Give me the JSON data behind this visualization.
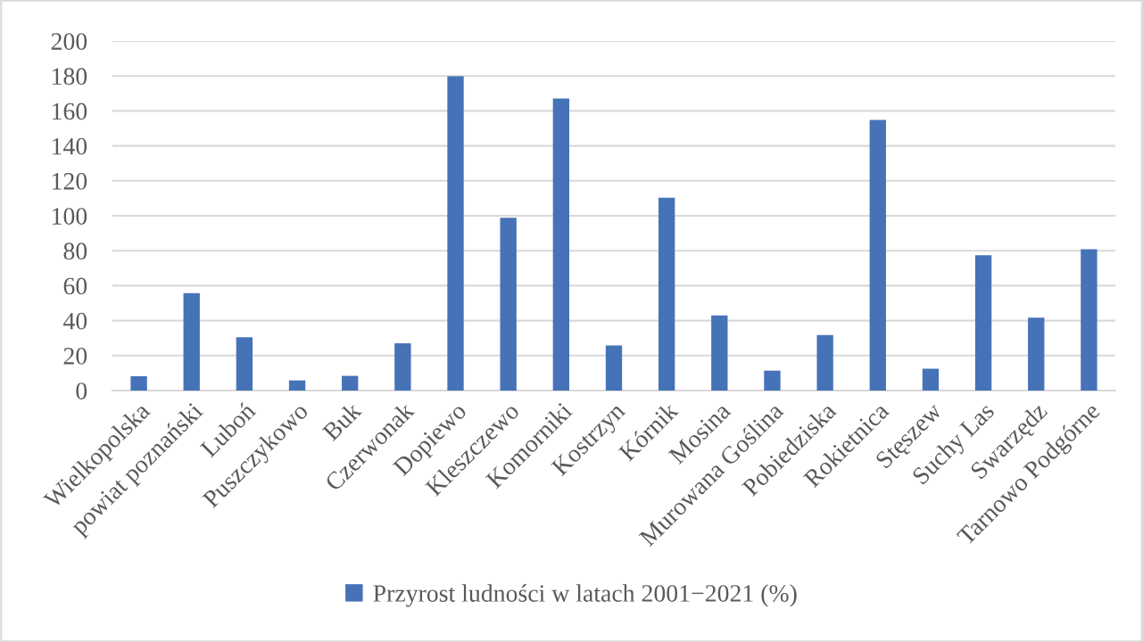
{
  "chart_data": {
    "type": "bar",
    "categories": [
      "Wielkopolska",
      "powiat poznański",
      "Luboń",
      "Puszczykowo",
      "Buk",
      "Czerwonak",
      "Dopiewo",
      "Kleszczewo",
      "Komorniki",
      "Kostrzyn",
      "Kórnik",
      "Mosina",
      "Murowana Goślina",
      "Pobiedziska",
      "Rokietnica",
      "Stęszew",
      "Suchy Las",
      "Swarzędz",
      "Tarnowo Podgórne"
    ],
    "series": [
      {
        "name": "Przyrost ludności w latach 2001−2021 (%)",
        "color": "#4672b8",
        "values": [
          8.2,
          55.7,
          30.5,
          5.8,
          8.4,
          27.1,
          179.8,
          98.9,
          167.1,
          25.8,
          110.3,
          43.0,
          11.4,
          31.8,
          154.8,
          12.5,
          77.4,
          41.7,
          80.9
        ]
      }
    ],
    "ylim": [
      0,
      200
    ],
    "yticks": [
      0,
      20,
      40,
      60,
      80,
      100,
      120,
      140,
      160,
      180,
      200
    ],
    "grid": "y",
    "legend": "bottom"
  }
}
